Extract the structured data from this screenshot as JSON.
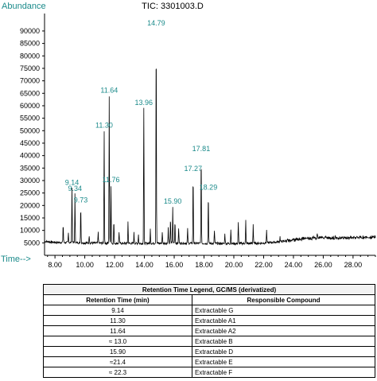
{
  "chart_data": {
    "type": "line",
    "title": "TIC: 3301003.D",
    "ylabel": "Abundance",
    "xlabel": "Time-->",
    "xlim": [
      7.3,
      29.5
    ],
    "ylim": [
      0,
      97000
    ],
    "x_ticks": [
      "8.00",
      "10.00",
      "12.00",
      "14.00",
      "16.00",
      "18.00",
      "20.00",
      "22.00",
      "24.00",
      "26.00",
      "28.00"
    ],
    "y_ticks": [
      "5000",
      "10000",
      "15000",
      "20000",
      "25000",
      "30000",
      "35000",
      "40000",
      "45000",
      "50000",
      "55000",
      "60000",
      "65000",
      "70000",
      "75000",
      "80000",
      "85000",
      "90000"
    ],
    "series": [
      {
        "baseline": [
          [
            7.3,
            5600
          ],
          [
            8,
            5200
          ],
          [
            10,
            5000
          ],
          [
            12,
            4800
          ],
          [
            14,
            4800
          ],
          [
            16,
            4900
          ],
          [
            18,
            4800
          ],
          [
            20,
            4700
          ],
          [
            22,
            4900
          ],
          [
            23,
            5400
          ],
          [
            24,
            6200
          ],
          [
            25,
            6900
          ],
          [
            26,
            7100
          ],
          [
            27,
            7000
          ],
          [
            28,
            7200
          ],
          [
            29.5,
            7300
          ]
        ],
        "peaks": [
          {
            "x": 9.14,
            "y": 27000,
            "label": "9.14"
          },
          {
            "x": 9.34,
            "y": 24500,
            "label": "9.34"
          },
          {
            "x": 9.73,
            "y": 20000,
            "label": "9.73"
          },
          {
            "x": 11.3,
            "y": 50000,
            "label": "11.30"
          },
          {
            "x": 11.64,
            "y": 64000,
            "label": "11.64"
          },
          {
            "x": 11.76,
            "y": 28000,
            "label": "11.76"
          },
          {
            "x": 13.96,
            "y": 59000,
            "label": "13.96"
          },
          {
            "x": 14.79,
            "y": 91000,
            "label": "14.79"
          },
          {
            "x": 15.9,
            "y": 19500,
            "label": "15.90"
          },
          {
            "x": 17.27,
            "y": 32500,
            "label": "17.27"
          },
          {
            "x": 17.81,
            "y": 40500,
            "label": "17.81"
          },
          {
            "x": 18.29,
            "y": 25000,
            "label": "18.29"
          },
          {
            "x": 8.55,
            "y": 12500
          },
          {
            "x": 8.9,
            "y": 9000
          },
          {
            "x": 10.3,
            "y": 8000
          },
          {
            "x": 10.9,
            "y": 9500
          },
          {
            "x": 11.95,
            "y": 14000
          },
          {
            "x": 12.3,
            "y": 9500
          },
          {
            "x": 12.9,
            "y": 13500
          },
          {
            "x": 13.3,
            "y": 9000
          },
          {
            "x": 13.6,
            "y": 8500
          },
          {
            "x": 14.4,
            "y": 10500
          },
          {
            "x": 15.2,
            "y": 9500
          },
          {
            "x": 15.6,
            "y": 11000
          },
          {
            "x": 15.75,
            "y": 15000
          },
          {
            "x": 16.05,
            "y": 14000
          },
          {
            "x": 16.3,
            "y": 11000
          },
          {
            "x": 16.9,
            "y": 10500
          },
          {
            "x": 18.7,
            "y": 10000
          },
          {
            "x": 19.4,
            "y": 9000
          },
          {
            "x": 19.8,
            "y": 10500
          },
          {
            "x": 20.3,
            "y": 13000
          },
          {
            "x": 20.8,
            "y": 14000
          },
          {
            "x": 21.3,
            "y": 12500
          },
          {
            "x": 22.2,
            "y": 10000
          },
          {
            "x": 23.1,
            "y": 7500
          },
          {
            "x": 25.6,
            "y": 9000
          }
        ]
      }
    ]
  },
  "legend_table": {
    "caption": "Retention Time Legend, GC/MS (derivatized)",
    "headers": [
      "Retention Time (min)",
      "Responsible Compound"
    ],
    "rows": [
      [
        "9.14",
        "Extractable G"
      ],
      [
        "11.30",
        "Extractable A1"
      ],
      [
        "11.64",
        "Extractable A2"
      ],
      [
        "≈ 13.0",
        "Extractable B"
      ],
      [
        "15.90",
        "Extractable D"
      ],
      [
        "≈21.4",
        "Extractable E"
      ],
      [
        "≈ 22.3",
        "Extractable F"
      ]
    ]
  },
  "colors": {
    "label_teal": "#1a8a8a",
    "trace": "#000000"
  }
}
